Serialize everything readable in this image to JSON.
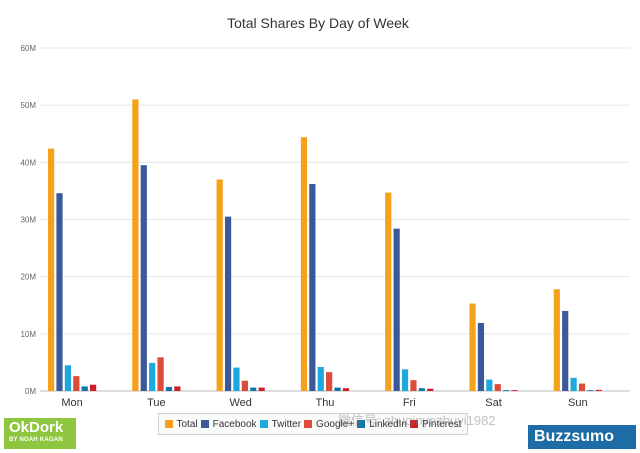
{
  "chart_data": {
    "type": "bar",
    "title": "Total Shares By Day of Week",
    "categories": [
      "Mon",
      "Tue",
      "Wed",
      "Thu",
      "Fri",
      "Sat",
      "Sun"
    ],
    "ylim": [
      0,
      60000000
    ],
    "yticks": [
      0,
      10000000,
      20000000,
      30000000,
      40000000,
      50000000,
      60000000
    ],
    "ytick_labels": [
      "0M",
      "10M",
      "20M",
      "30M",
      "40M",
      "50M",
      "60M"
    ],
    "grid": true,
    "legend_position": "bottom",
    "series": [
      {
        "name": "Total",
        "color": "#f5a11c",
        "values": [
          42400000,
          51000000,
          37000000,
          44400000,
          34700000,
          15300000,
          17800000
        ]
      },
      {
        "name": "Facebook",
        "color": "#3b5998",
        "values": [
          34600000,
          39500000,
          30500000,
          36200000,
          28400000,
          11900000,
          14000000
        ]
      },
      {
        "name": "Twitter",
        "color": "#1da9df",
        "values": [
          4500000,
          4900000,
          4100000,
          4200000,
          3800000,
          2000000,
          2300000
        ]
      },
      {
        "name": "Google+",
        "color": "#dd4b39",
        "values": [
          2600000,
          5900000,
          1800000,
          3300000,
          1900000,
          1200000,
          1300000
        ]
      },
      {
        "name": "LinkedIn",
        "color": "#0e76a8",
        "values": [
          800000,
          700000,
          600000,
          600000,
          500000,
          150000,
          150000
        ]
      },
      {
        "name": "Pinterest",
        "color": "#cb2027",
        "values": [
          1100000,
          800000,
          600000,
          500000,
          400000,
          150000,
          200000
        ]
      }
    ]
  },
  "legend_labels": [
    "Total",
    "Facebook",
    "Twitter",
    "Google+",
    "LinkedIn",
    "Pinterest"
  ],
  "brand_left": {
    "name": "OkDork",
    "tagline": "BY NOAH KAGAN"
  },
  "brand_right": {
    "name": "Buzzsumo"
  },
  "watermark": "微信号: zhuqinyezhuyi1982"
}
